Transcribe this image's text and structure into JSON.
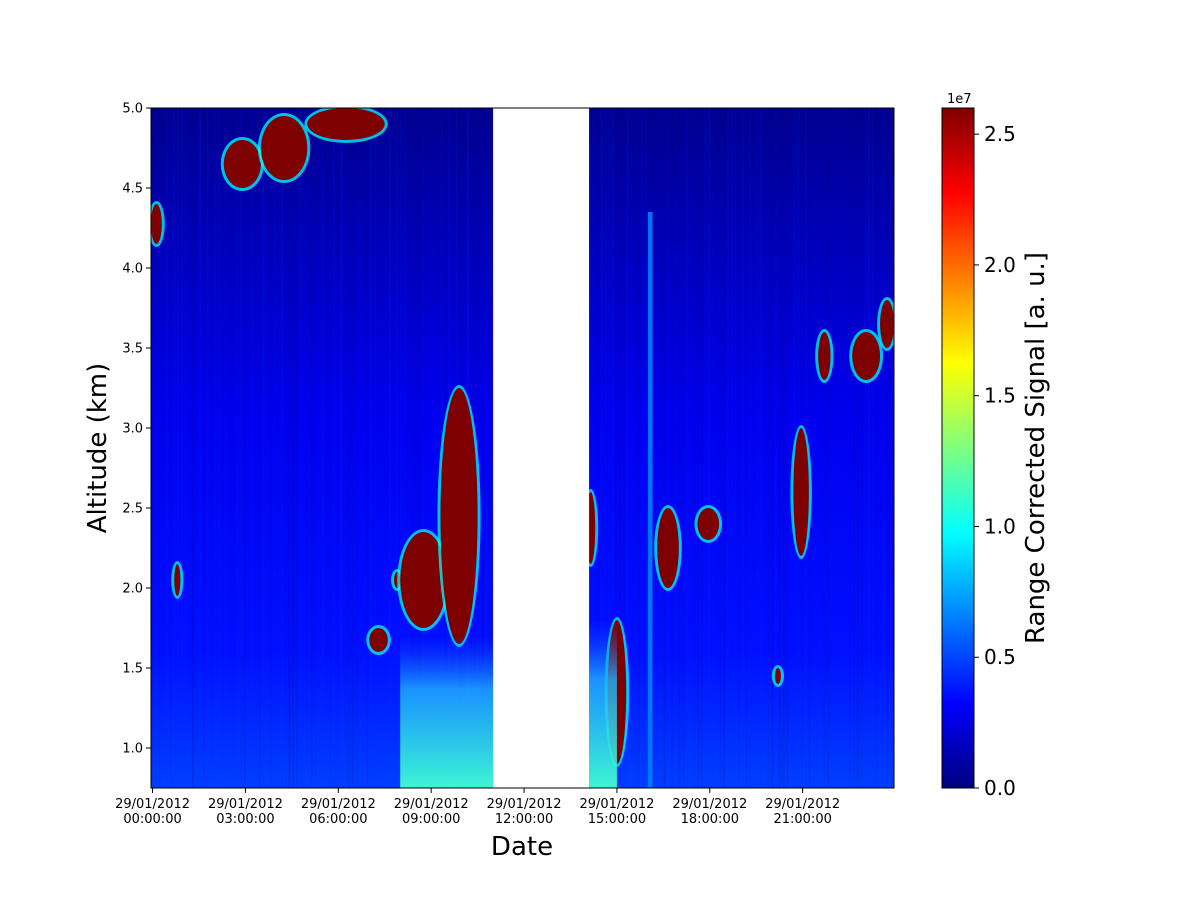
{
  "chart_data": {
    "type": "heatmap",
    "xlabel": "Date",
    "ylabel": "Altitude (km)",
    "x_ticks": [
      {
        "date": "29/01/2012",
        "time": "00:00:00"
      },
      {
        "date": "29/01/2012",
        "time": "03:00:00"
      },
      {
        "date": "29/01/2012",
        "time": "06:00:00"
      },
      {
        "date": "29/01/2012",
        "time": "09:00:00"
      },
      {
        "date": "29/01/2012",
        "time": "12:00:00"
      },
      {
        "date": "29/01/2012",
        "time": "15:00:00"
      },
      {
        "date": "29/01/2012",
        "time": "18:00:00"
      },
      {
        "date": "29/01/2012",
        "time": "21:00:00"
      }
    ],
    "xlim_hours": [
      -0.05,
      23.95
    ],
    "y_ticks": [
      "1.0",
      "1.5",
      "2.0",
      "2.5",
      "3.0",
      "3.5",
      "4.0",
      "4.5",
      "5.0"
    ],
    "ylim": [
      0.75,
      5.0
    ],
    "no_data_interval_hours": [
      11.0,
      14.1
    ],
    "colorbar": {
      "label": "Range Corrected Signal [a. u.]",
      "exponent_label": "1e7",
      "ticks": [
        "0.0",
        "0.5",
        "1.0",
        "1.5",
        "2.0",
        "2.5"
      ],
      "range": [
        0.0,
        2.6
      ],
      "colormap": "jet",
      "stops": [
        "#00007f",
        "#0000ff",
        "#007fff",
        "#00ffff",
        "#7fff7f",
        "#ffff00",
        "#ff7f00",
        "#ff0000",
        "#7f0000"
      ]
    },
    "features": [
      {
        "kind": "cloud",
        "hours": [
          -0.05,
          0.3
        ],
        "altitude_km": [
          4.15,
          4.4
        ],
        "signal": 2.6
      },
      {
        "kind": "cloud",
        "hours": [
          0.7,
          0.9
        ],
        "altitude_km": [
          1.95,
          2.15
        ],
        "signal": 2.6
      },
      {
        "kind": "cloud",
        "hours": [
          2.3,
          3.5
        ],
        "altitude_km": [
          4.5,
          4.8
        ],
        "signal": 2.6
      },
      {
        "kind": "cloud",
        "hours": [
          3.5,
          5.0
        ],
        "altitude_km": [
          4.55,
          4.95
        ],
        "signal": 2.6
      },
      {
        "kind": "cloud",
        "hours": [
          5.0,
          7.5
        ],
        "altitude_km": [
          4.8,
          5.0
        ],
        "signal": 2.6
      },
      {
        "kind": "cloud",
        "hours": [
          7.0,
          7.6
        ],
        "altitude_km": [
          1.6,
          1.75
        ],
        "signal": 2.6
      },
      {
        "kind": "cloud",
        "hours": [
          7.8,
          8.0
        ],
        "altitude_km": [
          2.0,
          2.1
        ],
        "signal": 2.6
      },
      {
        "kind": "cloud",
        "hours": [
          8.0,
          9.5
        ],
        "altitude_km": [
          1.75,
          2.35
        ],
        "signal": 2.6
      },
      {
        "kind": "cloud",
        "hours": [
          9.3,
          10.5
        ],
        "altitude_km": [
          1.65,
          3.25
        ],
        "signal": 2.6
      },
      {
        "kind": "cloud",
        "hours": [
          14.0,
          14.3
        ],
        "altitude_km": [
          2.15,
          2.6
        ],
        "signal": 2.6
      },
      {
        "kind": "cloud",
        "hours": [
          14.7,
          15.3
        ],
        "altitude_km": [
          0.9,
          1.8
        ],
        "signal": 2.6
      },
      {
        "kind": "cloud",
        "hours": [
          16.3,
          17.0
        ],
        "altitude_km": [
          2.0,
          2.5
        ],
        "signal": 2.6
      },
      {
        "kind": "cloud",
        "hours": [
          17.6,
          18.3
        ],
        "altitude_km": [
          2.3,
          2.5
        ],
        "signal": 2.6
      },
      {
        "kind": "cloud",
        "hours": [
          20.1,
          20.3
        ],
        "altitude_km": [
          1.4,
          1.5
        ],
        "signal": 2.6
      },
      {
        "kind": "cloud",
        "hours": [
          20.7,
          21.2
        ],
        "altitude_km": [
          2.2,
          3.0
        ],
        "signal": 2.6
      },
      {
        "kind": "cloud",
        "hours": [
          21.5,
          21.9
        ],
        "altitude_km": [
          3.3,
          3.6
        ],
        "signal": 2.6
      },
      {
        "kind": "cloud",
        "hours": [
          22.6,
          23.5
        ],
        "altitude_km": [
          3.3,
          3.6
        ],
        "signal": 2.6
      },
      {
        "kind": "cloud",
        "hours": [
          23.5,
          23.95
        ],
        "altitude_km": [
          3.5,
          3.8
        ],
        "signal": 2.6
      },
      {
        "kind": "aerosol_layer",
        "hours": [
          8.0,
          11.0
        ],
        "altitude_km": [
          0.75,
          1.7
        ],
        "signal": 1.0
      },
      {
        "kind": "aerosol_layer",
        "hours": [
          14.1,
          15.0
        ],
        "altitude_km": [
          0.75,
          1.8
        ],
        "signal": 1.0
      },
      {
        "kind": "plume",
        "hours": [
          16.0,
          16.15
        ],
        "altitude_km": [
          0.75,
          4.35
        ],
        "signal": 0.8
      }
    ]
  }
}
